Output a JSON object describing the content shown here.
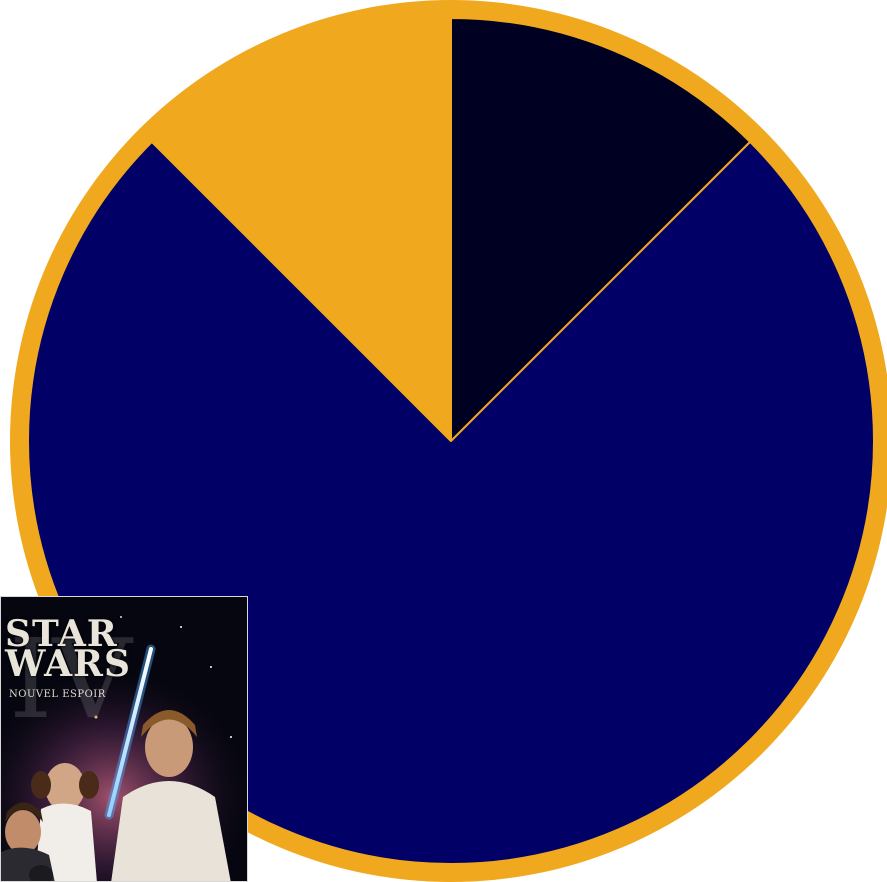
{
  "chart_data": {
    "type": "pie",
    "title": "",
    "start_angle_deg": 0,
    "direction": "clockwise",
    "slices": [
      {
        "value": 12.5,
        "color": "#000022"
      },
      {
        "value": 75.0,
        "color": "#000066"
      },
      {
        "value": 12.5,
        "color": "#f0a81e"
      }
    ],
    "ring_color": "#f0a81e"
  },
  "poster": {
    "title_line1": "STAR",
    "title_line2": "WARS",
    "subtitle": "NOUVEL ESPOIR"
  }
}
